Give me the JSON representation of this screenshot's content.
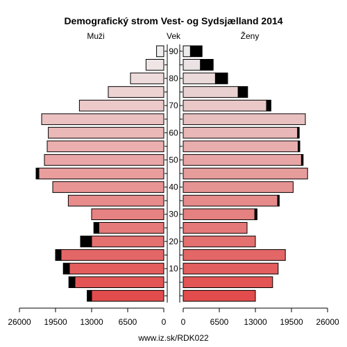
{
  "chart_data": {
    "type": "bar",
    "title": "Demografický strom Vest- og Sydsjælland 2014",
    "left_label": "Muži",
    "center_label": "Vek",
    "right_label": "Ženy",
    "footer": "www.iz.sk/RDK022",
    "xlim": [
      0,
      26000
    ],
    "x_ticks_left": [
      "26000",
      "19500",
      "13000",
      "6500",
      "0"
    ],
    "x_ticks_right": [
      "0",
      "6500",
      "13000",
      "19500",
      "26000"
    ],
    "x_tick_values": [
      0,
      6500,
      13000,
      19500,
      26000
    ],
    "age_ticks": [
      "10",
      "20",
      "30",
      "40",
      "50",
      "60",
      "70",
      "80",
      "90"
    ],
    "age_groups": [
      "0-4",
      "5-9",
      "10-14",
      "15-19",
      "20-24",
      "25-29",
      "30-34",
      "35-39",
      "40-44",
      "45-49",
      "50-54",
      "55-59",
      "60-64",
      "65-69",
      "70-74",
      "75-79",
      "80-84",
      "85-89",
      "90+"
    ],
    "series": [
      {
        "name": "Muži",
        "base": [
          13000,
          16000,
          17000,
          18500,
          13000,
          11700,
          13000,
          17200,
          20000,
          22500,
          21500,
          21000,
          20800,
          22000,
          15200,
          10000,
          6000,
          3200,
          1300
        ],
        "excess": [
          800,
          1100,
          1100,
          1000,
          2000,
          900,
          0,
          0,
          0,
          500,
          0,
          0,
          0,
          0,
          0,
          0,
          0,
          0,
          0
        ]
      },
      {
        "name": "Ženy",
        "base": [
          13000,
          16100,
          17100,
          18400,
          13000,
          11500,
          12900,
          17000,
          19800,
          22400,
          21300,
          20700,
          20600,
          22000,
          15000,
          9900,
          5800,
          3100,
          1300
        ],
        "excess": [
          0,
          0,
          0,
          0,
          0,
          0,
          400,
          300,
          0,
          0,
          300,
          300,
          300,
          0,
          800,
          1700,
          2200,
          2300,
          2100
        ]
      }
    ]
  }
}
